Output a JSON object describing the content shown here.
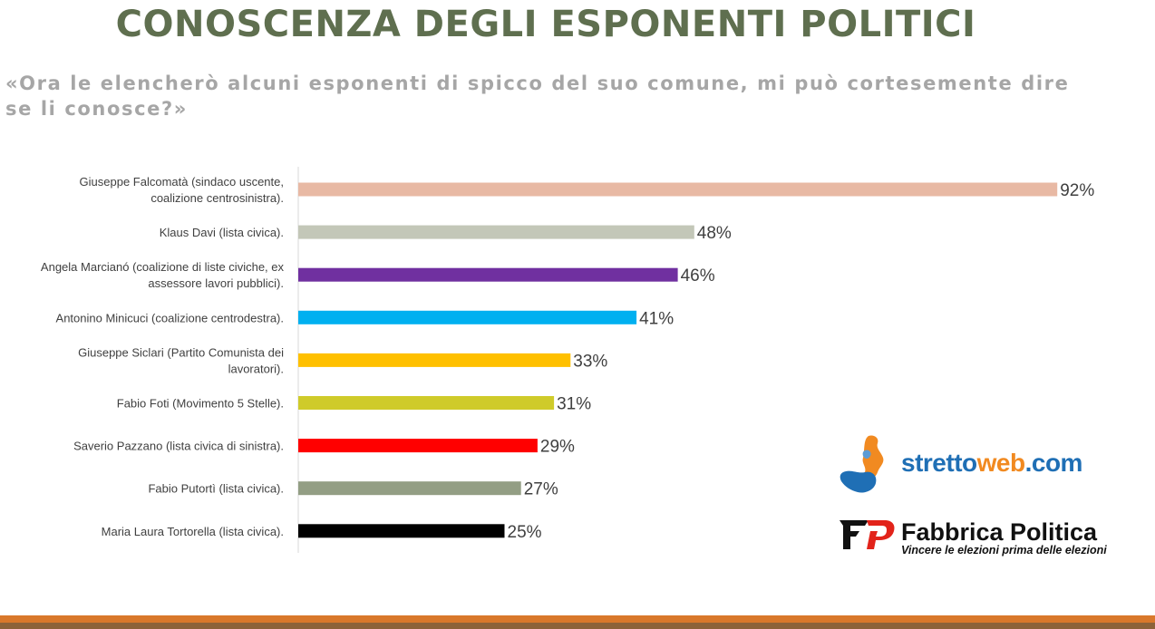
{
  "title": "CONOSCENZA DEGLI ESPONENTI POLITICI",
  "subtitle": "«Ora le elencherò alcuni esponenti di spicco del suo comune, mi può cortesemente dire se li conosce?»",
  "logos": {
    "strettoweb": {
      "part1": "stretto",
      "part2": "web",
      "part3": ".com"
    },
    "fabbrica": {
      "name": "Fabbrica Politica",
      "tagline": "Vincere le elezioni prima delle elezioni"
    }
  },
  "colors": {
    "title": "#5f6f4f",
    "subtitle": "#a6a6a6",
    "axis": "#d9d9d9",
    "bottom_bar_top": "#d9782b",
    "bottom_bar_bottom": "#8c6239"
  },
  "chart_data": {
    "type": "bar",
    "orientation": "horizontal",
    "title": "",
    "xlabel": "",
    "ylabel": "",
    "xlim": [
      0,
      100
    ],
    "grid": false,
    "legend": "none",
    "value_format": "percent",
    "categories": [
      [
        "Giuseppe Falcomatà (sindaco uscente,",
        "coalizione centrosinistra)."
      ],
      [
        "Klaus Davi (lista civica)."
      ],
      [
        "Angela Marcianó (coalizione di liste civiche, ex",
        "assessore lavori pubblici)."
      ],
      [
        "Antonino Minicuci (coalizione centrodestra)."
      ],
      [
        "Giuseppe Siclari (Partito Comunista dei",
        "lavoratori)."
      ],
      [
        "Fabio Foti (Movimento 5 Stelle)."
      ],
      [
        "Saverio Pazzano (lista civica di sinistra)."
      ],
      [
        "Fabio Putortì (lista civica)."
      ],
      [
        "Maria Laura Tortorella (lista civica)."
      ]
    ],
    "values": [
      92,
      48,
      46,
      41,
      33,
      31,
      29,
      27,
      25
    ],
    "value_labels": [
      "92%",
      "48%",
      "46%",
      "41%",
      "33%",
      "31%",
      "29%",
      "27%",
      "25%"
    ],
    "bar_colors": [
      "#e8b9a4",
      "#c3c7b8",
      "#7030a0",
      "#00b0f0",
      "#ffc000",
      "#cfcb2a",
      "#ff0000",
      "#939e84",
      "#000000"
    ]
  }
}
